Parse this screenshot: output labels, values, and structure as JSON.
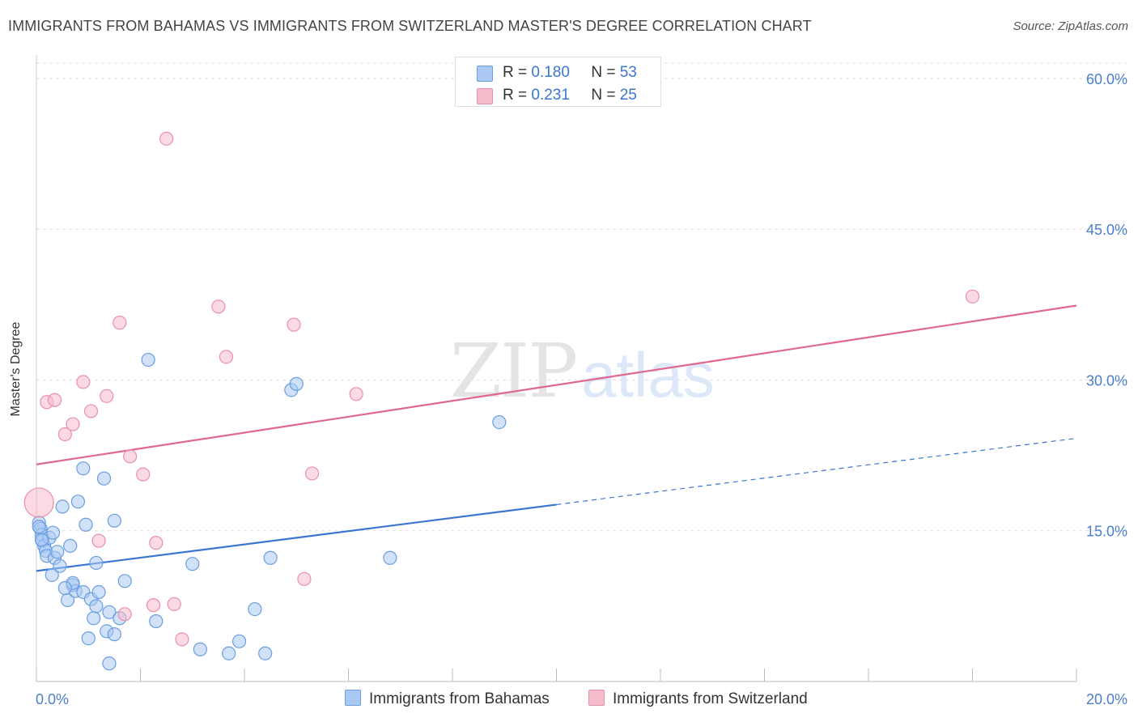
{
  "title": "IMMIGRANTS FROM BAHAMAS VS IMMIGRANTS FROM SWITZERLAND MASTER'S DEGREE CORRELATION CHART",
  "source": "Source: ZipAtlas.com",
  "watermark": {
    "zip": "ZIP",
    "atlas": "atlas"
  },
  "colors": {
    "bahamas_fill": "#a9c8f2",
    "bahamas_stroke": "#6a9ee0",
    "bahamas_line": "#3a76d0",
    "swiss_fill": "#f7bccc",
    "swiss_stroke": "#ea8faa",
    "swiss_line": "#e06890",
    "tick_label": "#4a7fcc",
    "grid": "#dddddd"
  },
  "legend": {
    "rows": [
      {
        "r_label": "R =",
        "r_value": "0.180",
        "n_label": "N =",
        "n_value": "53"
      },
      {
        "r_label": "R =",
        "r_value": "0.231",
        "n_label": "N =",
        "n_value": "25"
      }
    ]
  },
  "chart_data": {
    "type": "scatter",
    "title": "IMMIGRANTS FROM BAHAMAS VS IMMIGRANTS FROM SWITZERLAND MASTER'S DEGREE CORRELATION CHART",
    "xlabel": "",
    "ylabel": "Master's Degree",
    "xlim": [
      0,
      20
    ],
    "ylim": [
      0,
      62
    ],
    "x_tick_labels": [
      "0.0%",
      "20.0%"
    ],
    "y_ticks": [
      15,
      30,
      45,
      60
    ],
    "y_tick_labels": [
      "15.0%",
      "30.0%",
      "45.0%",
      "60.0%"
    ],
    "grid": true,
    "legend_position": "top-center",
    "series": [
      {
        "name": "Immigrants from Bahamas",
        "r": 0.18,
        "n": 53,
        "trend": {
          "x0": 0,
          "y0": 11.0,
          "x1": 10,
          "y1": 17.6,
          "dashed_to_x": 20,
          "dashed_y1": 24.2
        },
        "points": [
          [
            0.05,
            15.8
          ],
          [
            0.08,
            15.2
          ],
          [
            0.1,
            14.6
          ],
          [
            0.12,
            14.0
          ],
          [
            0.15,
            13.5
          ],
          [
            0.18,
            13.0
          ],
          [
            0.2,
            12.5
          ],
          [
            0.25,
            14.3
          ],
          [
            0.3,
            10.6
          ],
          [
            0.32,
            14.8
          ],
          [
            0.35,
            12.3
          ],
          [
            0.4,
            12.9
          ],
          [
            0.45,
            11.5
          ],
          [
            0.5,
            17.4
          ],
          [
            0.6,
            8.1
          ],
          [
            0.65,
            13.5
          ],
          [
            0.7,
            9.6
          ],
          [
            0.75,
            9.0
          ],
          [
            0.8,
            17.9
          ],
          [
            0.9,
            8.9
          ],
          [
            0.9,
            21.2
          ],
          [
            0.95,
            15.6
          ],
          [
            1.0,
            4.3
          ],
          [
            1.05,
            8.2
          ],
          [
            1.1,
            6.3
          ],
          [
            1.15,
            7.5
          ],
          [
            1.15,
            11.8
          ],
          [
            1.2,
            8.9
          ],
          [
            1.3,
            20.2
          ],
          [
            1.35,
            5.0
          ],
          [
            1.4,
            6.9
          ],
          [
            1.4,
            1.8
          ],
          [
            1.5,
            4.7
          ],
          [
            1.5,
            16.0
          ],
          [
            1.6,
            6.3
          ],
          [
            1.7,
            10.0
          ],
          [
            2.15,
            32.0
          ],
          [
            2.3,
            6.0
          ],
          [
            3.0,
            11.7
          ],
          [
            3.15,
            3.2
          ],
          [
            3.7,
            2.8
          ],
          [
            3.9,
            4.0
          ],
          [
            4.2,
            7.2
          ],
          [
            4.4,
            2.8
          ],
          [
            4.5,
            12.3
          ],
          [
            4.9,
            29.0
          ],
          [
            5.0,
            29.6
          ],
          [
            6.8,
            12.3
          ],
          [
            8.9,
            25.8
          ],
          [
            0.05,
            15.4
          ],
          [
            0.1,
            14.1
          ],
          [
            0.7,
            9.8
          ],
          [
            0.55,
            9.3
          ]
        ]
      },
      {
        "name": "Immigrants from Switzerland",
        "r": 0.231,
        "n": 25,
        "trend": {
          "x0": 0,
          "y0": 21.6,
          "x1": 20,
          "y1": 37.4
        },
        "points": [
          [
            0.05,
            17.8
          ],
          [
            0.2,
            27.8
          ],
          [
            0.35,
            28.0
          ],
          [
            0.55,
            24.6
          ],
          [
            0.7,
            25.6
          ],
          [
            0.9,
            29.8
          ],
          [
            1.05,
            26.9
          ],
          [
            1.2,
            14.0
          ],
          [
            1.35,
            28.4
          ],
          [
            1.6,
            35.7
          ],
          [
            1.7,
            6.7
          ],
          [
            1.8,
            22.4
          ],
          [
            2.05,
            20.6
          ],
          [
            2.3,
            13.8
          ],
          [
            2.5,
            54.0
          ],
          [
            2.25,
            7.6
          ],
          [
            2.65,
            7.7
          ],
          [
            2.8,
            4.2
          ],
          [
            3.5,
            37.3
          ],
          [
            3.65,
            32.3
          ],
          [
            4.95,
            35.5
          ],
          [
            5.15,
            10.2
          ],
          [
            5.3,
            20.7
          ],
          [
            6.15,
            28.6
          ],
          [
            18.0,
            38.3
          ]
        ]
      }
    ]
  }
}
